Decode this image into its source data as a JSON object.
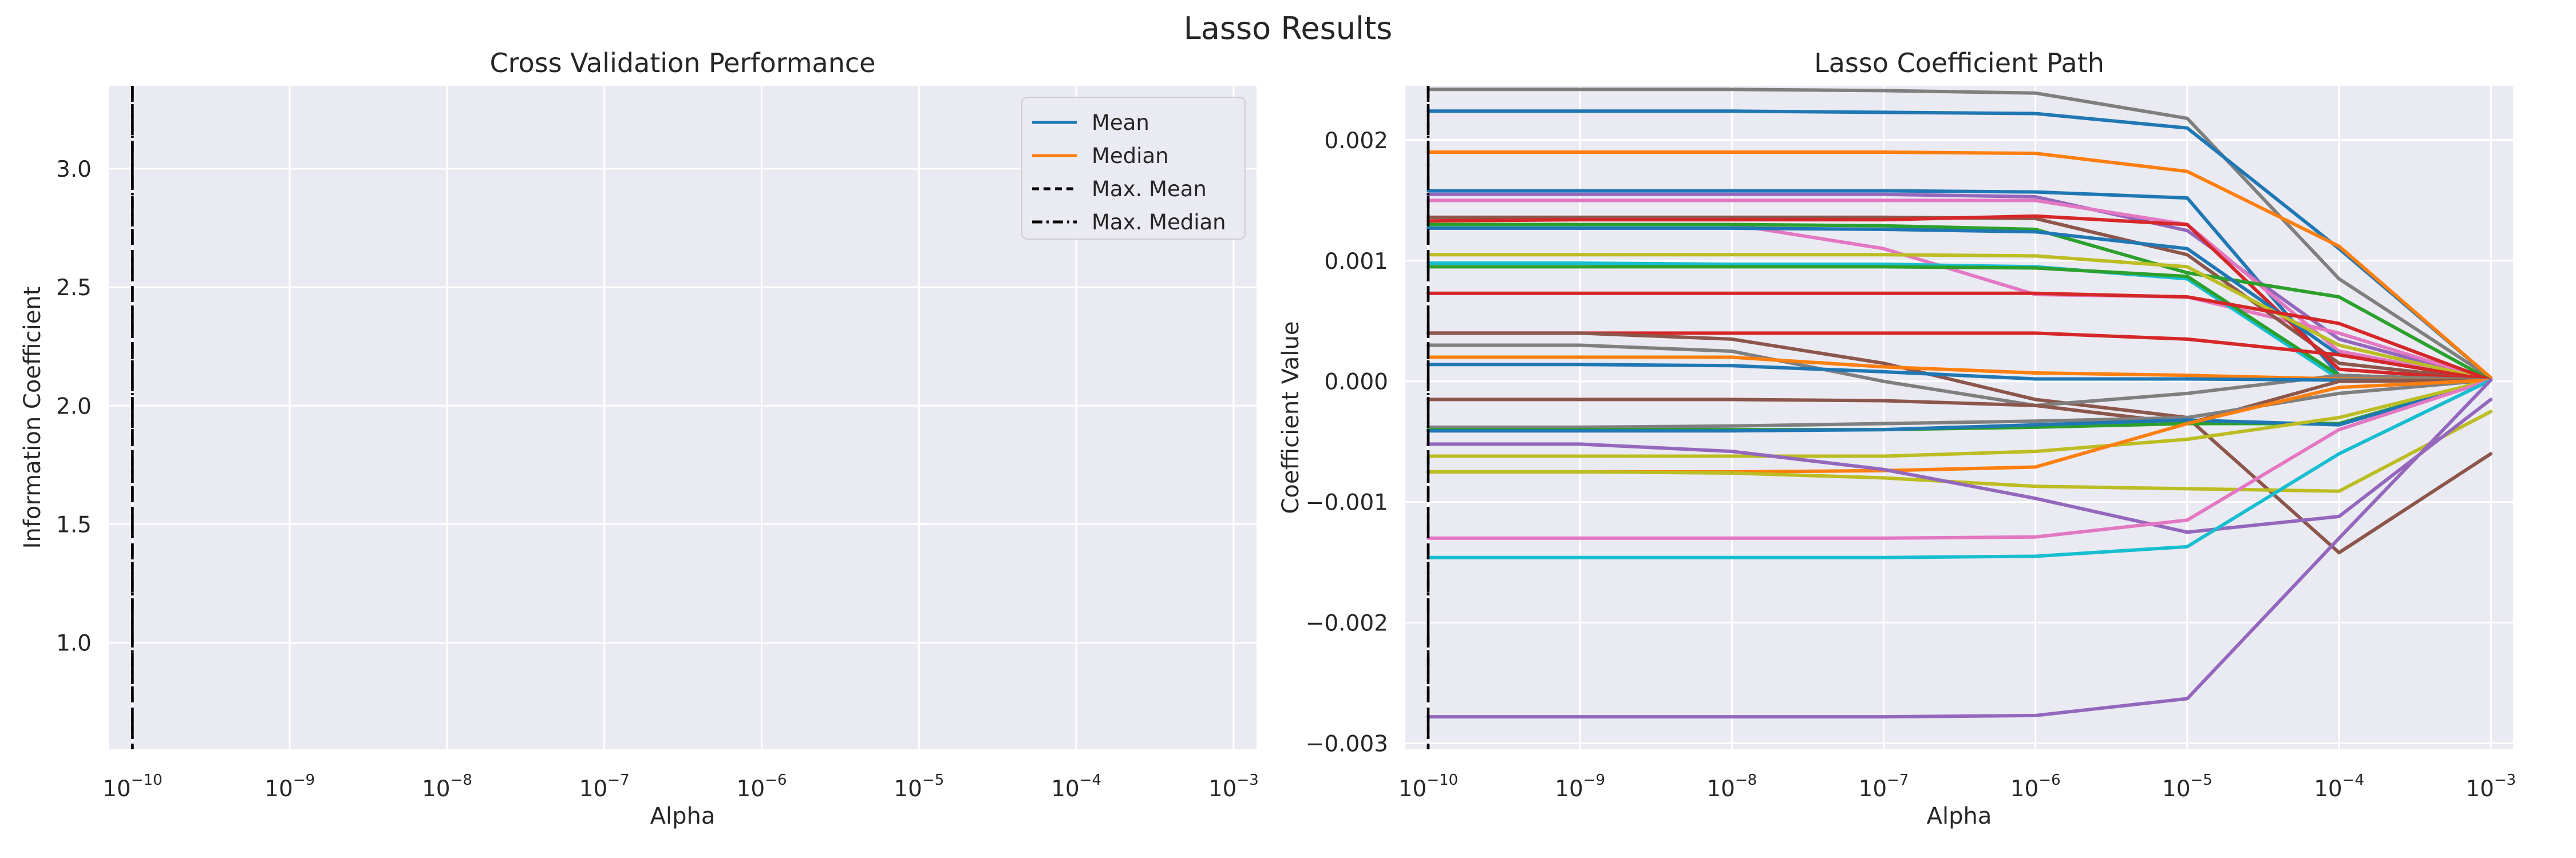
{
  "figure_title": "Lasso Results",
  "chart_data": [
    {
      "type": "line",
      "title": "Cross Validation Performance",
      "xlabel": "Alpha",
      "ylabel": "Information Coefficient",
      "xscale": "log",
      "x_ticks": [
        "10^-10",
        "10^-9",
        "10^-8",
        "10^-7",
        "10^-6",
        "10^-5",
        "10^-4",
        "10^-3"
      ],
      "xlim": [
        7.07e-11,
        0.0014
      ],
      "ylim": [
        0.55,
        3.35
      ],
      "y_ticks": [
        "1.0",
        "1.5",
        "2.0",
        "2.5",
        "3.0"
      ],
      "grid": true,
      "legend": {
        "placement": "upper right",
        "entries": [
          {
            "label": "Mean",
            "style": "solid",
            "color": "#1f77b4"
          },
          {
            "label": "Median",
            "style": "solid",
            "color": "#ff7f0e"
          },
          {
            "label": "Max. Mean",
            "style": "dashed",
            "color": "#000000"
          },
          {
            "label": "Max. Median",
            "style": "dashdot",
            "color": "#000000"
          }
        ]
      },
      "series": [],
      "vlines": [
        {
          "x": 1e-10,
          "style": "dashed"
        },
        {
          "x": 1e-10,
          "style": "dashdot"
        }
      ]
    },
    {
      "type": "line",
      "title": "Lasso Coefficient Path",
      "xlabel": "Alpha",
      "ylabel": "Coefficient Value",
      "xscale": "log",
      "x": [
        1e-10,
        1e-09,
        1e-08,
        1e-07,
        1e-06,
        1e-05,
        0.0001,
        0.001
      ],
      "x_ticks": [
        "10^-10",
        "10^-9",
        "10^-8",
        "10^-7",
        "10^-6",
        "10^-5",
        "10^-4",
        "10^-3"
      ],
      "xlim": [
        7.07e-11,
        0.0014
      ],
      "ylim": [
        -0.00305,
        0.00245
      ],
      "y_ticks": [
        "−0.003",
        "−0.002",
        "−0.001",
        "0.000",
        "0.001",
        "0.002"
      ],
      "grid": true,
      "vlines": [
        {
          "x": 1e-10,
          "style": "dashed"
        },
        {
          "x": 1e-10,
          "style": "dashdot"
        }
      ],
      "series": [
        {
          "color": "#7f7f7f",
          "values": [
            0.00242,
            0.00242,
            0.00242,
            0.00241,
            0.00239,
            0.00218,
            0.00085,
            3e-05
          ]
        },
        {
          "color": "#1f77b4",
          "values": [
            0.00224,
            0.00224,
            0.00224,
            0.00223,
            0.00222,
            0.0021,
            0.0011,
            3e-05
          ]
        },
        {
          "color": "#ff7f0e",
          "values": [
            0.0019,
            0.0019,
            0.0019,
            0.0019,
            0.00189,
            0.00174,
            0.00112,
            3e-05
          ]
        },
        {
          "color": "#1f77b4",
          "values": [
            0.00158,
            0.00158,
            0.00158,
            0.00158,
            0.00157,
            0.00152,
            5e-05,
            1e-05
          ]
        },
        {
          "color": "#9467bd",
          "values": [
            0.00155,
            0.00155,
            0.00155,
            0.00155,
            0.00153,
            0.00125,
            0.00035,
            1e-05
          ]
        },
        {
          "color": "#e377c2",
          "values": [
            0.0015,
            0.0015,
            0.0015,
            0.0015,
            0.0015,
            0.0013,
            0.00025,
            1e-05
          ]
        },
        {
          "color": "#e377c2",
          "values": [
            0.0013,
            0.0013,
            0.0013,
            0.0011,
            0.00072,
            0.0007,
            0.0004,
            1e-05
          ]
        },
        {
          "color": "#8c564b",
          "values": [
            0.00136,
            0.00136,
            0.00136,
            0.00136,
            0.00135,
            0.00105,
            0.00015,
            1e-05
          ]
        },
        {
          "color": "#d62728",
          "values": [
            0.00133,
            0.00134,
            0.00134,
            0.00134,
            0.00137,
            0.0013,
            0.0001,
            1e-05
          ]
        },
        {
          "color": "#2ca02c",
          "values": [
            0.0013,
            0.0013,
            0.0013,
            0.00129,
            0.00126,
            0.0009,
            0.0007,
            1e-05
          ]
        },
        {
          "color": "#1f77b4",
          "values": [
            0.00127,
            0.00127,
            0.00127,
            0.00126,
            0.00124,
            0.0011,
            0.00022,
            1e-05
          ]
        },
        {
          "color": "#bcbd22",
          "values": [
            0.00105,
            0.00105,
            0.00105,
            0.00105,
            0.00104,
            0.00095,
            0.0003,
            1e-05
          ]
        },
        {
          "color": "#17becf",
          "values": [
            0.00098,
            0.00098,
            0.00097,
            0.00097,
            0.00095,
            0.00085,
            2e-05,
            1e-05
          ]
        },
        {
          "color": "#2ca02c",
          "values": [
            0.00095,
            0.00095,
            0.00095,
            0.00095,
            0.00094,
            0.00087,
            5e-05,
            1e-05
          ]
        },
        {
          "color": "#d62728",
          "values": [
            0.00073,
            0.00073,
            0.00073,
            0.00073,
            0.00073,
            0.0007,
            0.00048,
            1e-05
          ]
        },
        {
          "color": "#d62728",
          "values": [
            0.0004,
            0.0004,
            0.0004,
            0.0004,
            0.0004,
            0.00035,
            0.00022,
            1e-05
          ]
        },
        {
          "color": "#8c564b",
          "values": [
            0.0004,
            0.0004,
            0.00035,
            0.00015,
            -0.00015,
            -0.0003,
            -0.00142,
            -0.0006
          ]
        },
        {
          "color": "#7f7f7f",
          "values": [
            0.0003,
            0.0003,
            0.00025,
            0.0,
            -0.0002,
            -0.0001,
            5e-05,
            1e-05
          ]
        },
        {
          "color": "#ff7f0e",
          "values": [
            0.0002,
            0.0002,
            0.0002,
            0.00012,
            7e-05,
            5e-05,
            2e-05,
            1e-05
          ]
        },
        {
          "color": "#1f77b4",
          "values": [
            0.00014,
            0.00014,
            0.00013,
            8e-05,
            2e-05,
            2e-05,
            1e-05,
            1e-05
          ]
        },
        {
          "color": "#8c564b",
          "values": [
            -0.00015,
            -0.00015,
            -0.00015,
            -0.00016,
            -0.0002,
            -0.00035,
            0.0,
            1e-05
          ]
        },
        {
          "color": "#7f7f7f",
          "values": [
            -0.00038,
            -0.00038,
            -0.00037,
            -0.00035,
            -0.00033,
            -0.0003,
            -0.0001,
            1e-05
          ]
        },
        {
          "color": "#2ca02c",
          "values": [
            -0.0004,
            -0.0004,
            -0.0004,
            -0.0004,
            -0.00038,
            -0.00035,
            -0.00035,
            1e-05
          ]
        },
        {
          "color": "#1f77b4",
          "values": [
            -0.00041,
            -0.00041,
            -0.00041,
            -0.0004,
            -0.00036,
            -0.00032,
            -0.00036,
            1e-05
          ]
        },
        {
          "color": "#bcbd22",
          "values": [
            -0.00062,
            -0.00062,
            -0.00062,
            -0.00062,
            -0.00058,
            -0.00048,
            -0.0003,
            1e-05
          ]
        },
        {
          "color": "#ff7f0e",
          "values": [
            -0.00075,
            -0.00075,
            -0.00075,
            -0.00074,
            -0.00071,
            -0.00035,
            -5e-05,
            1e-05
          ]
        },
        {
          "color": "#bcbd22",
          "values": [
            -0.00075,
            -0.00075,
            -0.00076,
            -0.0008,
            -0.00087,
            -0.00089,
            -0.00091,
            -0.00025
          ]
        },
        {
          "color": "#9467bd",
          "values": [
            -0.00052,
            -0.00052,
            -0.00058,
            -0.00073,
            -0.00097,
            -0.00125,
            -0.00112,
            -0.00015
          ]
        },
        {
          "color": "#e377c2",
          "values": [
            -0.0013,
            -0.0013,
            -0.0013,
            -0.0013,
            -0.00129,
            -0.00115,
            -0.0004,
            1e-05
          ]
        },
        {
          "color": "#17becf",
          "values": [
            -0.00146,
            -0.00146,
            -0.00146,
            -0.00146,
            -0.00145,
            -0.00137,
            -0.0006,
            1e-05
          ]
        },
        {
          "color": "#9467bd",
          "values": [
            -0.00278,
            -0.00278,
            -0.00278,
            -0.00278,
            -0.00277,
            -0.00263,
            -0.0013,
            1e-05
          ]
        }
      ]
    }
  ]
}
